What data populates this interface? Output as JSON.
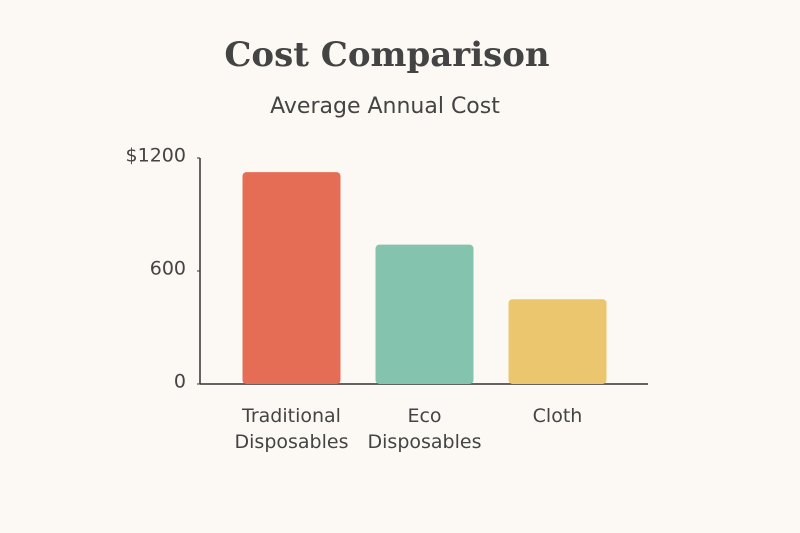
{
  "chart_data": {
    "type": "bar",
    "title": "Cost Comparison",
    "subtitle": "Average Annual Cost",
    "categories": [
      "Traditional Disposables",
      "Eco Disposables",
      "Cloth"
    ],
    "values": [
      1125,
      740,
      450
    ],
    "colors": [
      "#e66d55",
      "#84c3ae",
      "#ecc66e"
    ],
    "ylim": [
      0,
      1200
    ],
    "yticks": [
      0,
      600,
      {
        "value": 1200,
        "label": "$1200"
      }
    ],
    "grid": false
  }
}
